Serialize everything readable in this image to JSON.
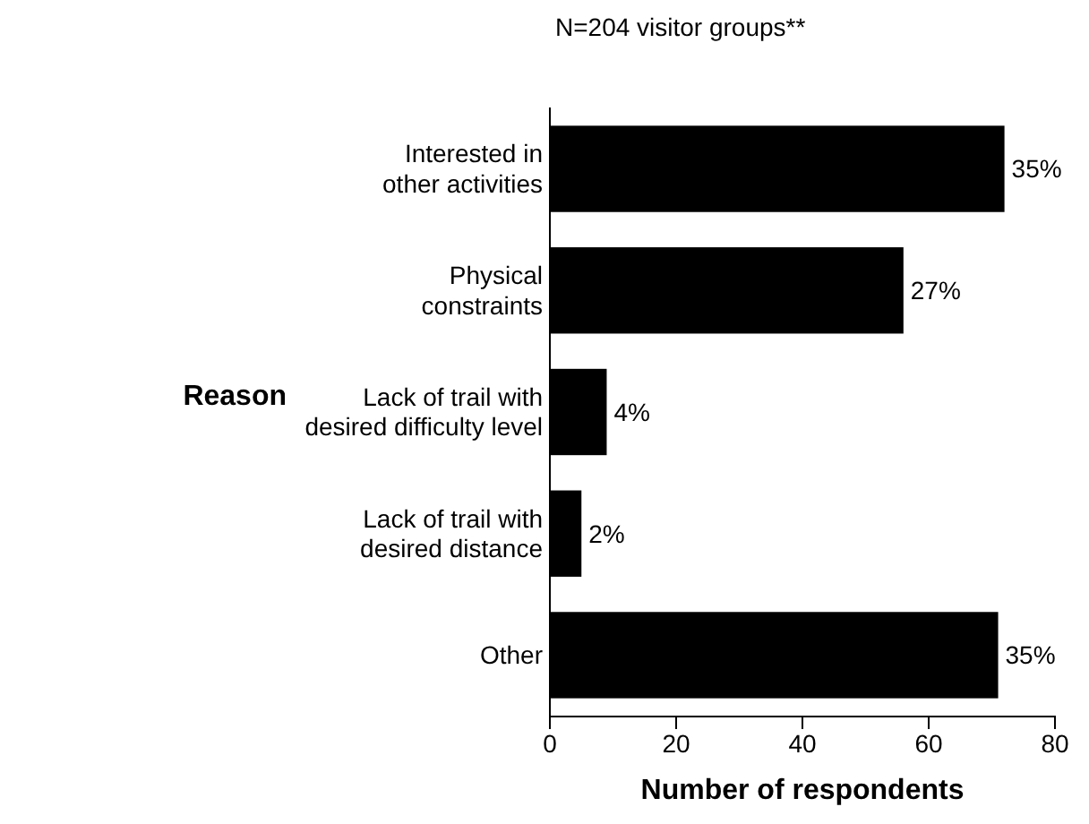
{
  "chart_data": {
    "type": "bar",
    "orientation": "horizontal",
    "title": "N=204 visitor groups**",
    "xlabel": "Number of respondents",
    "ylabel": "Reason",
    "categories": [
      "Interested in other activities",
      "Physical constraints",
      "Lack of trail with desired difficulty level",
      "Lack of trail with desired distance",
      "Other"
    ],
    "values": [
      72,
      56,
      9,
      5,
      71
    ],
    "annotations": [
      {
        "text": "35%",
        "x": 72,
        "y": "Interested in other activities"
      },
      {
        "text": "27%",
        "x": 56,
        "y": "Physical constraints"
      },
      {
        "text": "4%",
        "x": 9,
        "y": "Lack of trail with desired difficulty level"
      },
      {
        "text": "2%",
        "x": 5,
        "y": "Lack of trail with desired distance"
      },
      {
        "text": "35%",
        "x": 71,
        "y": "Other"
      }
    ],
    "color": "#000000",
    "xlim": [
      0,
      80
    ],
    "xticks": [
      0,
      20,
      40,
      60,
      80
    ],
    "grid": false
  }
}
